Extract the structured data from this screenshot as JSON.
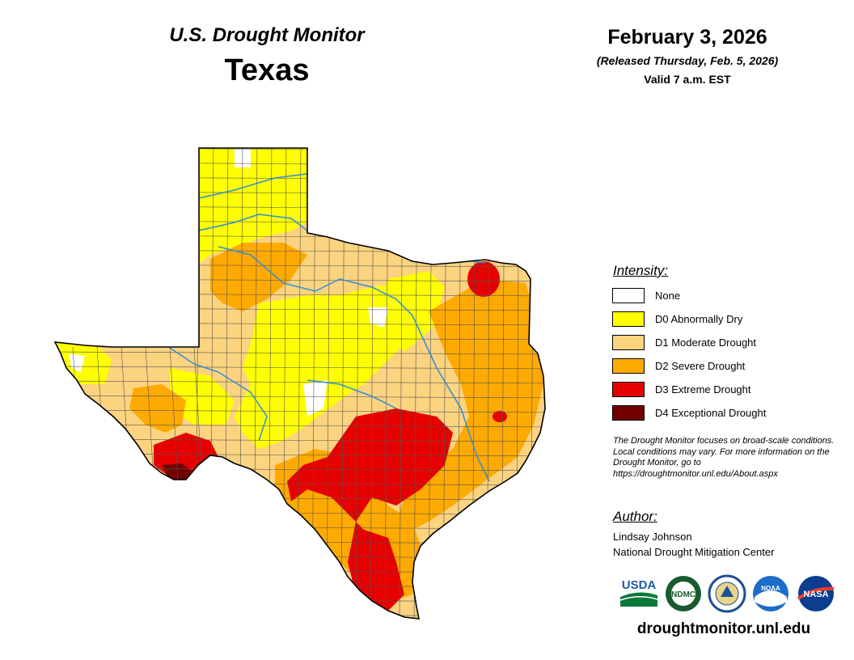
{
  "header": {
    "title": "U.S. Drought Monitor",
    "state": "Texas",
    "date": "February 3, 2026",
    "released": "(Released Thursday, Feb. 5, 2026)",
    "valid": "Valid 7 a.m. EST"
  },
  "legend": {
    "title": "Intensity:",
    "items": [
      {
        "code": "None",
        "label": "None",
        "color": "#ffffff"
      },
      {
        "code": "D0",
        "label": "D0 Abnormally Dry",
        "color": "#ffff00"
      },
      {
        "code": "D1",
        "label": "D1 Moderate Drought",
        "color": "#fcd37f"
      },
      {
        "code": "D2",
        "label": "D2 Severe Drought",
        "color": "#ffaa00"
      },
      {
        "code": "D3",
        "label": "D3 Extreme Drought",
        "color": "#e60000"
      },
      {
        "code": "D4",
        "label": "D4 Exceptional Drought",
        "color": "#730000"
      }
    ]
  },
  "note": "The Drought Monitor focuses on broad-scale conditions. Local conditions may vary. For more information on the Drought Monitor, go to https://droughtmonitor.unl.edu/About.aspx",
  "author": {
    "title": "Author:",
    "name": "Lindsay Johnson",
    "org": "National Drought Mitigation Center"
  },
  "logos": {
    "usda": "USDA",
    "ndmc": "NDMC",
    "noaa": "NOAA",
    "nasa": "NASA"
  },
  "url": "droughtmonitor.unl.edu",
  "colors": {
    "river": "#2b8fd8",
    "border": "#000000",
    "county": "#555555"
  }
}
